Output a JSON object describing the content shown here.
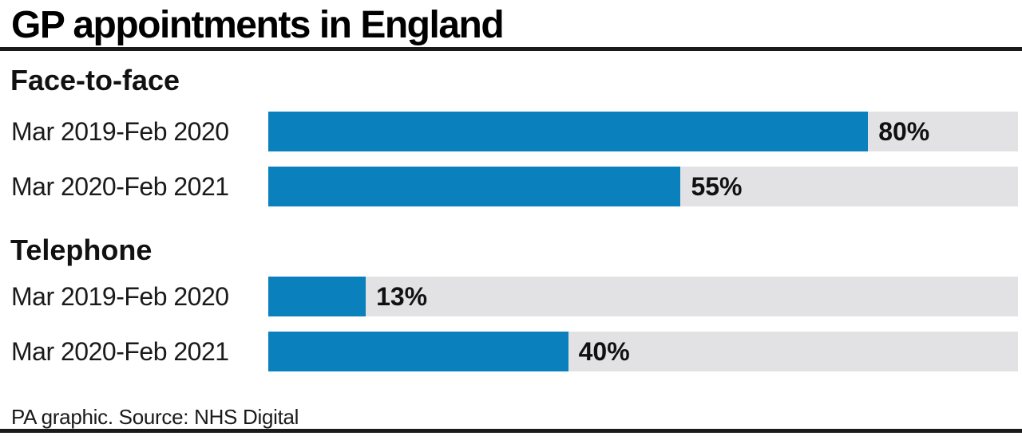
{
  "title": "GP appointments in England",
  "footer": {
    "source_text": "PA graphic. Source: NHS Digital"
  },
  "colors": {
    "bar_fill": "#0a80bc",
    "bar_track": "#e2e2e4",
    "rule": "#1a1a1a",
    "text": "#000000"
  },
  "chart_data": {
    "type": "bar",
    "orientation": "horizontal",
    "title": "GP appointments in England",
    "unit": "%",
    "xlim": [
      0,
      100
    ],
    "grid": false,
    "legend": false,
    "groups": [
      {
        "label": "Face-to-face",
        "categories": [
          "Mar 2019-Feb 2020",
          "Mar 2020-Feb 2021"
        ],
        "rows": [
          {
            "label": "Mar 2019-Feb 2020",
            "value": 80,
            "value_label": "80%"
          },
          {
            "label": "Mar 2020-Feb 2021",
            "value": 55,
            "value_label": "55%"
          }
        ]
      },
      {
        "label": "Telephone",
        "categories": [
          "Mar 2019-Feb 2020",
          "Mar 2020-Feb 2021"
        ],
        "rows": [
          {
            "label": "Mar 2019-Feb 2020",
            "value": 13,
            "value_label": "13%"
          },
          {
            "label": "Mar 2020-Feb 2021",
            "value": 40,
            "value_label": "40%"
          }
        ]
      }
    ],
    "source": "PA graphic. Source: NHS Digital"
  }
}
